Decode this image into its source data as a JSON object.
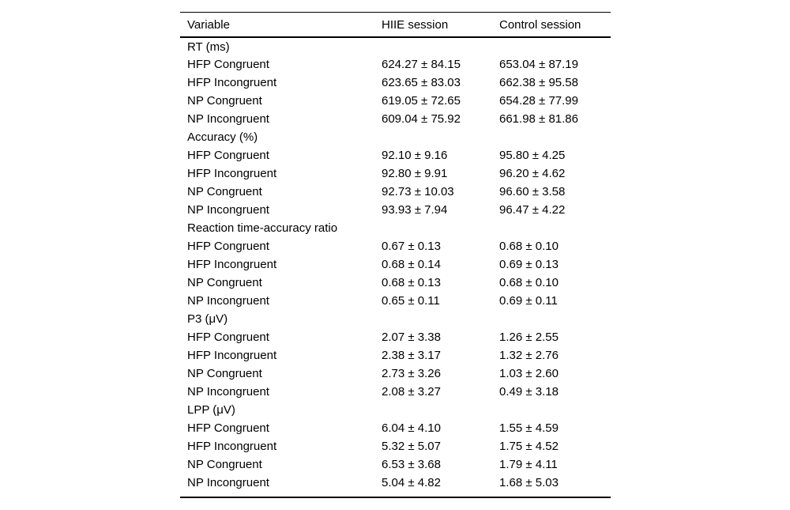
{
  "colors": {
    "background": "#ffffff",
    "text": "#000000",
    "rule": "#000000"
  },
  "table": {
    "columns": [
      "Variable",
      "HIIE session",
      "Control session"
    ],
    "sections": [
      {
        "header": "RT (ms)",
        "rows": [
          [
            "HFP Congruent",
            "624.27 ± 84.15",
            "653.04 ± 87.19"
          ],
          [
            "HFP Incongruent",
            "623.65 ± 83.03",
            "662.38 ± 95.58"
          ],
          [
            "NP Congruent",
            "619.05 ± 72.65",
            "654.28 ± 77.99"
          ],
          [
            "NP Incongruent",
            "609.04 ± 75.92",
            "661.98 ± 81.86"
          ]
        ]
      },
      {
        "header": "Accuracy (%)",
        "rows": [
          [
            "HFP Congruent",
            "92.10 ± 9.16",
            "95.80 ± 4.25"
          ],
          [
            "HFP Incongruent",
            "92.80 ± 9.91",
            "96.20 ± 4.62"
          ],
          [
            "NP Congruent",
            "92.73 ± 10.03",
            "96.60 ± 3.58"
          ],
          [
            "NP Incongruent",
            "93.93 ± 7.94",
            "96.47 ± 4.22"
          ]
        ]
      },
      {
        "header": "Reaction time-accuracy ratio",
        "rows": [
          [
            "HFP Congruent",
            "0.67 ± 0.13",
            "0.68 ± 0.10"
          ],
          [
            "HFP Incongruent",
            "0.68 ± 0.14",
            "0.69 ± 0.13"
          ],
          [
            "NP Congruent",
            "0.68 ± 0.13",
            "0.68 ± 0.10"
          ],
          [
            "NP Incongruent",
            "0.65 ± 0.11",
            "0.69 ± 0.11"
          ]
        ]
      },
      {
        "header": "P3 (μV)",
        "rows": [
          [
            "HFP Congruent",
            "2.07 ± 3.38",
            "1.26 ± 2.55"
          ],
          [
            "HFP Incongruent",
            "2.38 ± 3.17",
            "1.32 ± 2.76"
          ],
          [
            "NP Congruent",
            "2.73 ± 3.26",
            "1.03 ± 2.60"
          ],
          [
            "NP Incongruent",
            "2.08 ± 3.27",
            "0.49 ± 3.18"
          ]
        ]
      },
      {
        "header": "LPP (μV)",
        "rows": [
          [
            "HFP Congruent",
            "6.04 ± 4.10",
            "1.55 ± 4.59"
          ],
          [
            "HFP Incongruent",
            "5.32 ± 5.07",
            "1.75 ± 4.52"
          ],
          [
            "NP Congruent",
            "6.53 ± 3.68",
            "1.79 ± 4.11"
          ],
          [
            "NP Incongruent",
            "5.04 ± 4.82",
            "1.68 ± 5.03"
          ]
        ]
      }
    ]
  }
}
